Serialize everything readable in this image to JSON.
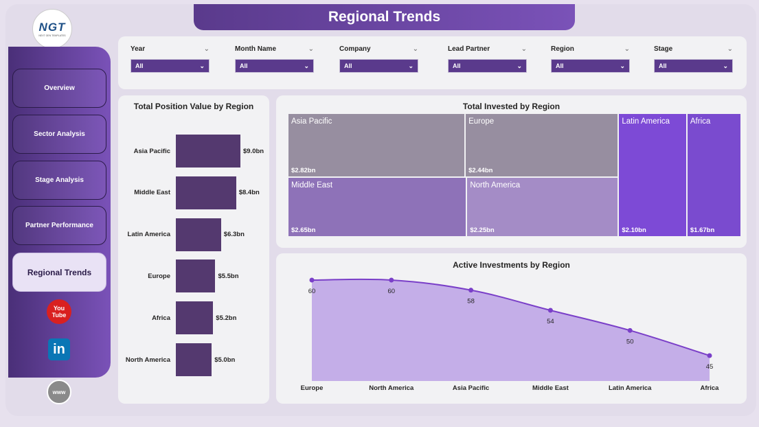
{
  "header": {
    "title": "Regional Trends"
  },
  "logo": {
    "text": "NGT",
    "subtext": "NEXT GEN TEMPLATES"
  },
  "nav": {
    "overview": "Overview",
    "sector": "Sector Analysis",
    "stage": "Stage Analysis",
    "partner": "Partner Performance",
    "regional": "Regional Trends"
  },
  "social": {
    "youtube_top": "You",
    "youtube_bottom": "Tube",
    "linkedin": "in",
    "web": "www"
  },
  "filters": [
    {
      "label": "Year",
      "value": "All"
    },
    {
      "label": "Month Name",
      "value": "All"
    },
    {
      "label": "Company",
      "value": "All"
    },
    {
      "label": "Lead Partner",
      "value": "All"
    },
    {
      "label": "Region",
      "value": "All"
    },
    {
      "label": "Stage",
      "value": "All"
    }
  ],
  "colors": {
    "accent": "#5a3a8c",
    "bar": "#54396f",
    "line": "#7a3fc8",
    "area": "#c4aee8"
  },
  "chart_data": [
    {
      "type": "bar",
      "orientation": "horizontal",
      "title": "Total Position Value by Region",
      "categories": [
        "Asia Pacific",
        "Middle East",
        "Latin America",
        "Europe",
        "Africa",
        "North America"
      ],
      "values": [
        9.0,
        8.4,
        6.3,
        5.5,
        5.2,
        5.0
      ],
      "labels": [
        "$9.0bn",
        "$8.4bn",
        "$6.3bn",
        "$5.5bn",
        "$5.2bn",
        "$5.0bn"
      ],
      "unit": "bn"
    },
    {
      "type": "treemap",
      "title": "Total Invested by Region",
      "categories": [
        "Asia Pacific",
        "Europe",
        "Middle East",
        "North America",
        "Latin America",
        "Africa"
      ],
      "values": [
        2.82,
        2.44,
        2.65,
        2.25,
        2.1,
        1.67
      ],
      "labels": [
        "$2.82bn",
        "$2.44bn",
        "$2.65bn",
        "$2.25bn",
        "$2.10bn",
        "$1.67bn"
      ],
      "colors": [
        "#978ea0",
        "#978ea0",
        "#8e72b8",
        "#a48cc6",
        "#7d4ad6",
        "#7a4bcf"
      ]
    },
    {
      "type": "area",
      "title": "Active Investments by Region",
      "categories": [
        "Europe",
        "North America",
        "Asia Pacific",
        "Middle East",
        "Latin America",
        "Africa"
      ],
      "values": [
        60,
        60,
        58,
        54,
        50,
        45
      ]
    }
  ]
}
